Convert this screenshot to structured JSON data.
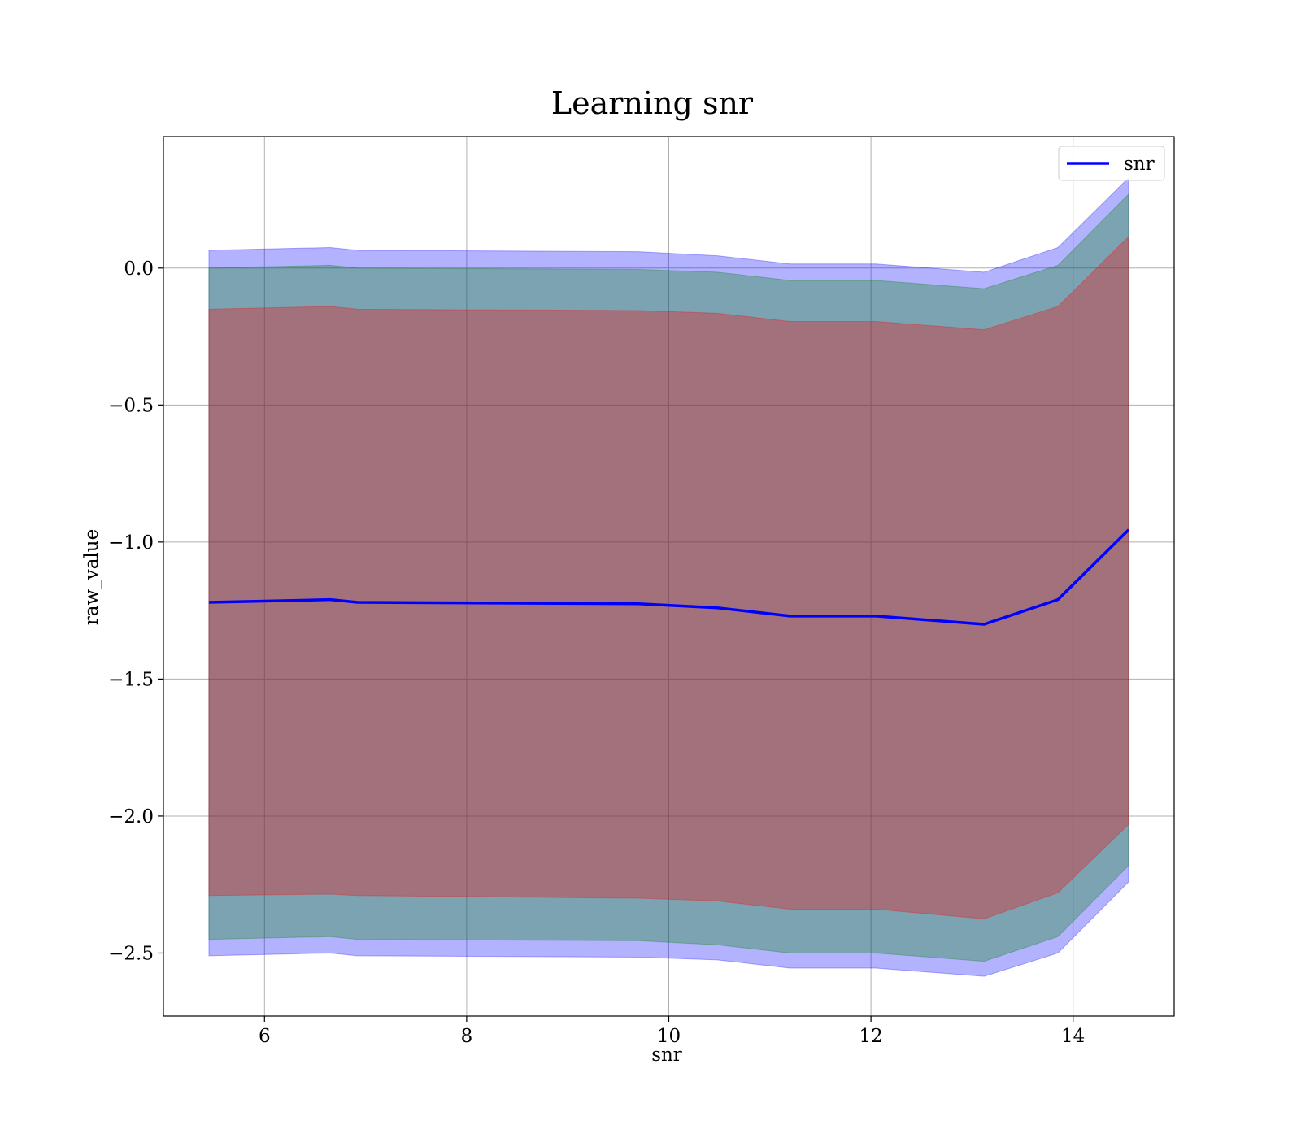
{
  "chart_data": {
    "type": "line",
    "title": "Learning snr",
    "xlabel": "snr",
    "ylabel": "raw_value",
    "xlim": [
      5.0,
      15.0
    ],
    "ylim": [
      -2.73,
      0.48
    ],
    "xticks": [
      6,
      8,
      10,
      12,
      14
    ],
    "yticks": [
      0.0,
      -0.5,
      -1.0,
      -1.5,
      -2.0,
      -2.5
    ],
    "ytick_labels": [
      "0.0",
      "−0.5",
      "−1.0",
      "−1.5",
      "−2.0",
      "−2.5"
    ],
    "xtick_labels": [
      "6",
      "8",
      "10",
      "12",
      "14"
    ],
    "grid": true,
    "legend": {
      "position": "top-right",
      "entries": [
        "snr"
      ]
    },
    "x": [
      5.45,
      6.65,
      6.92,
      9.7,
      10.48,
      11.2,
      12.05,
      13.12,
      13.85,
      14.55
    ],
    "series": [
      {
        "name": "snr",
        "color": "#0000ff",
        "values": [
          -1.22,
          -1.21,
          -1.22,
          -1.225,
          -1.24,
          -1.27,
          -1.27,
          -1.3,
          -1.21,
          -0.955
        ]
      }
    ],
    "bands": [
      {
        "role": "outer",
        "color": "#0000ff",
        "opacity": 0.3,
        "upper": [
          0.065,
          0.075,
          0.065,
          0.06,
          0.045,
          0.015,
          0.015,
          -0.015,
          0.075,
          0.33
        ],
        "lower": [
          -2.51,
          -2.5,
          -2.51,
          -2.515,
          -2.525,
          -2.555,
          -2.555,
          -2.585,
          -2.5,
          -2.24
        ]
      },
      {
        "role": "middle",
        "color": "#008000",
        "opacity": 0.3,
        "upper": [
          0.0,
          0.01,
          0.0,
          -0.005,
          -0.015,
          -0.045,
          -0.045,
          -0.075,
          0.01,
          0.27
        ],
        "lower": [
          -2.45,
          -2.44,
          -2.45,
          -2.455,
          -2.47,
          -2.5,
          -2.5,
          -2.53,
          -2.44,
          -2.18
        ]
      },
      {
        "role": "inner",
        "color": "#ff0000",
        "opacity": 0.3,
        "upper": [
          -0.15,
          -0.14,
          -0.15,
          -0.155,
          -0.165,
          -0.195,
          -0.195,
          -0.225,
          -0.14,
          0.115
        ],
        "lower": [
          -2.29,
          -2.285,
          -2.29,
          -2.3,
          -2.31,
          -2.34,
          -2.34,
          -2.375,
          -2.28,
          -2.03
        ]
      }
    ]
  }
}
